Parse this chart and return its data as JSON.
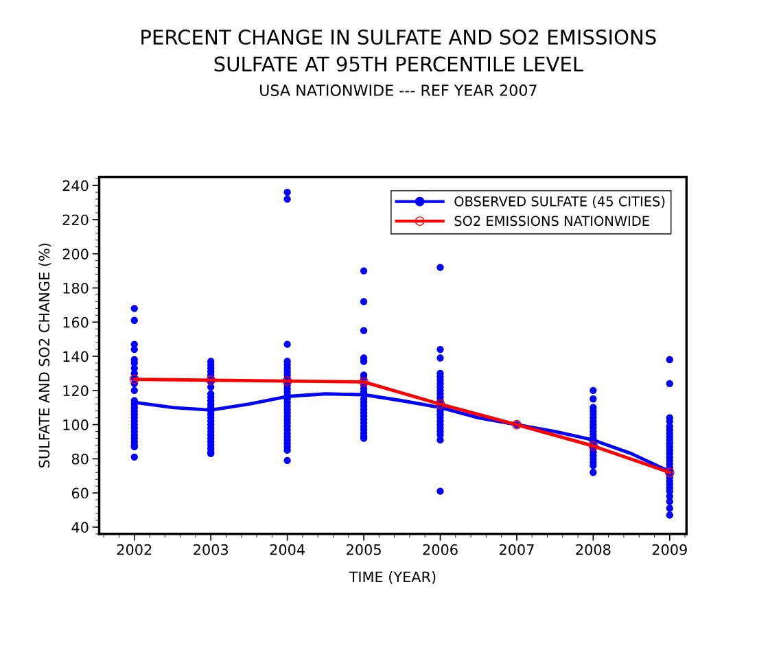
{
  "chart_data": {
    "type": "scatter",
    "title": "PERCENT CHANGE IN SULFATE AND SO2 EMISSIONS\nSULFATE AT 95TH PERCENTILE LEVEL",
    "subtitle": "USA NATIONWIDE --- REF YEAR 2007",
    "xlabel": "TIME (YEAR)",
    "ylabel": "SULFATE AND SO2 CHANGE (%)",
    "xlim": [
      2001.54,
      2009.22
    ],
    "xticks": [
      2002,
      2003,
      2004,
      2005,
      2006,
      2007,
      2008,
      2009
    ],
    "ylim": [
      36,
      245
    ],
    "yticks": [
      40,
      60,
      80,
      100,
      120,
      140,
      160,
      180,
      200,
      220,
      240
    ],
    "grid": false,
    "legend": "top right",
    "series": [
      {
        "name": "OBSERVED SULFATE (45 CITIES)",
        "color": "#0000ff",
        "marker": "circle",
        "x": [
          2002,
          2002,
          2002,
          2002,
          2002,
          2002,
          2002,
          2002,
          2002,
          2002,
          2002,
          2002,
          2002,
          2002,
          2002,
          2002,
          2002,
          2002,
          2002,
          2002,
          2002,
          2002,
          2002,
          2002,
          2002,
          2002,
          2002,
          2003,
          2003,
          2003,
          2003,
          2003,
          2003,
          2003,
          2003,
          2003,
          2003,
          2003,
          2003,
          2003,
          2003,
          2003,
          2003,
          2003,
          2003,
          2003,
          2003,
          2003,
          2003,
          2003,
          2003,
          2003,
          2003,
          2003,
          2004,
          2004,
          2004,
          2004,
          2004,
          2004,
          2004,
          2004,
          2004,
          2004,
          2004,
          2004,
          2004,
          2004,
          2004,
          2004,
          2004,
          2004,
          2004,
          2004,
          2004,
          2004,
          2004,
          2004,
          2004,
          2004,
          2004,
          2004,
          2004,
          2004,
          2004,
          2005,
          2005,
          2005,
          2005,
          2005,
          2005,
          2005,
          2005,
          2005,
          2005,
          2005,
          2005,
          2005,
          2005,
          2005,
          2005,
          2005,
          2005,
          2005,
          2005,
          2005,
          2005,
          2005,
          2006,
          2006,
          2006,
          2006,
          2006,
          2006,
          2006,
          2006,
          2006,
          2006,
          2006,
          2006,
          2006,
          2006,
          2006,
          2006,
          2006,
          2006,
          2006,
          2006,
          2006,
          2006,
          2006,
          2007,
          2008,
          2008,
          2008,
          2008,
          2008,
          2008,
          2008,
          2008,
          2008,
          2008,
          2008,
          2008,
          2008,
          2008,
          2008,
          2008,
          2008,
          2008,
          2008,
          2008,
          2008,
          2009,
          2009,
          2009,
          2009,
          2009,
          2009,
          2009,
          2009,
          2009,
          2009,
          2009,
          2009,
          2009,
          2009,
          2009,
          2009,
          2009,
          2009,
          2009,
          2009,
          2009,
          2009,
          2009,
          2009,
          2009,
          2009,
          2009,
          2009
        ],
        "values": [
          168,
          161,
          147,
          144,
          138,
          136,
          133,
          130,
          124,
          120,
          114,
          112,
          110,
          108,
          104,
          102,
          100,
          98,
          96,
          94,
          92,
          90,
          88,
          87,
          81,
          127,
          106,
          137,
          135,
          133,
          131,
          129,
          127,
          125,
          122,
          118,
          116,
          114,
          112,
          110,
          108,
          106,
          104,
          102,
          100,
          98,
          96,
          94,
          92,
          90,
          88,
          86,
          84,
          83,
          236,
          232,
          147,
          137,
          135,
          133,
          131,
          129,
          127,
          125,
          123,
          121,
          119,
          117,
          115,
          113,
          111,
          109,
          107,
          105,
          103,
          101,
          99,
          97,
          95,
          93,
          91,
          89,
          87,
          85,
          79,
          190,
          172,
          155,
          139,
          137,
          129,
          127,
          123,
          121,
          119,
          115,
          113,
          111,
          109,
          107,
          105,
          103,
          101,
          99,
          97,
          95,
          93,
          92,
          192,
          144,
          139,
          130,
          128,
          126,
          124,
          122,
          120,
          118,
          116,
          114,
          112,
          108,
          106,
          104,
          102,
          100,
          98,
          96,
          94,
          91,
          61,
          100,
          120,
          115,
          110,
          108,
          106,
          104,
          102,
          100,
          98,
          96,
          94,
          92,
          90,
          88,
          86,
          84,
          82,
          80,
          78,
          76,
          72,
          138,
          124,
          104,
          102,
          99,
          97,
          95,
          93,
          91,
          89,
          87,
          85,
          83,
          81,
          79,
          77,
          75,
          73,
          71,
          69,
          67,
          65,
          63,
          61,
          58,
          55,
          51,
          47
        ]
      },
      {
        "type": "line",
        "color": "#0000ff",
        "marker": "none",
        "x": [
          2002,
          2002.5,
          2003,
          2003.5,
          2004,
          2004.5,
          2005,
          2005.5,
          2006,
          2006.5,
          2007,
          2007.5,
          2008,
          2008.5,
          2009
        ],
        "values": [
          113,
          110,
          108.5,
          112,
          116.5,
          118,
          117.5,
          114,
          110,
          104,
          100,
          96,
          91,
          83,
          72.5
        ]
      },
      {
        "name": "SO2 EMISSIONS NATIONWIDE",
        "type": "line",
        "color": "#ff0000",
        "marker": "circle",
        "x": [
          2002,
          2003,
          2004,
          2005,
          2006,
          2007,
          2008,
          2009
        ],
        "values": [
          126.5,
          126,
          125.5,
          125,
          112,
          100,
          87.5,
          72
        ]
      }
    ]
  }
}
